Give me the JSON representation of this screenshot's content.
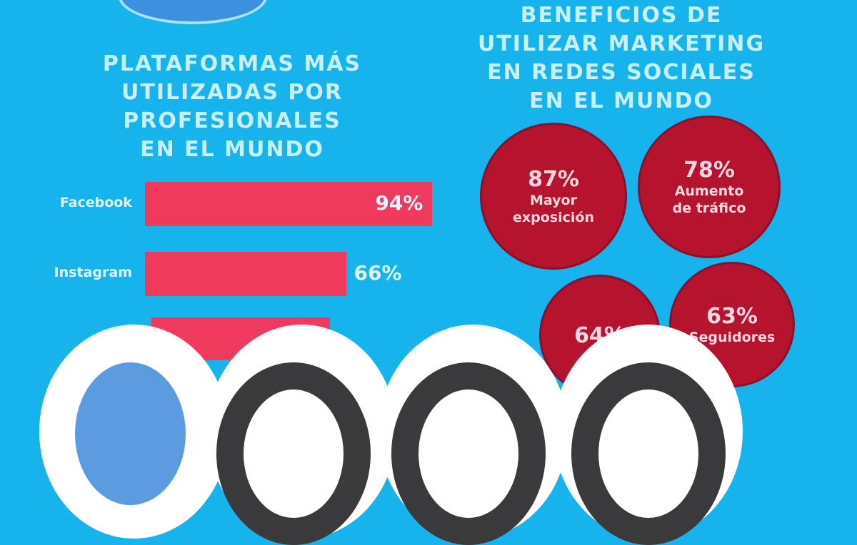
{
  "left_title": "PLATAFORMAS MÁS\nUTILIZADAS POR\nPROFESIONALES\nEN EL MUNDO",
  "right_title": "BENEFICIOS DE\nUTILIZAR MARKETING\nEN REDES SOCIALES\nEN EL MUNDO",
  "colors": {
    "background": "#17b3ec",
    "bar": "#ef3a5d",
    "circle": "#b5132e"
  },
  "chart_data": [
    {
      "type": "bar",
      "title": "PLATAFORMAS MÁS UTILIZADAS POR PROFESIONALES EN EL MUNDO",
      "orientation": "horizontal",
      "categories": [
        "Facebook",
        "Instagram"
      ],
      "values": [
        94,
        66
      ],
      "labels": [
        "94%",
        "66%"
      ],
      "unit": "%"
    },
    {
      "type": "bubble",
      "title": "BENEFICIOS DE UTILIZAR MARKETING EN REDES SOCIALES EN EL MUNDO",
      "items": [
        {
          "value": 87,
          "label": "87%",
          "text": "Mayor\nexposición"
        },
        {
          "value": 78,
          "label": "78%",
          "text": "Aumento\nde tráfico"
        },
        {
          "value": 64,
          "label": "64%",
          "text": ""
        },
        {
          "value": 63,
          "label": "63%",
          "text": "Seguidores"
        }
      ]
    }
  ],
  "icons": [
    "facebook-logo-icon",
    "social-icon",
    "social-icon",
    "social-icon"
  ]
}
